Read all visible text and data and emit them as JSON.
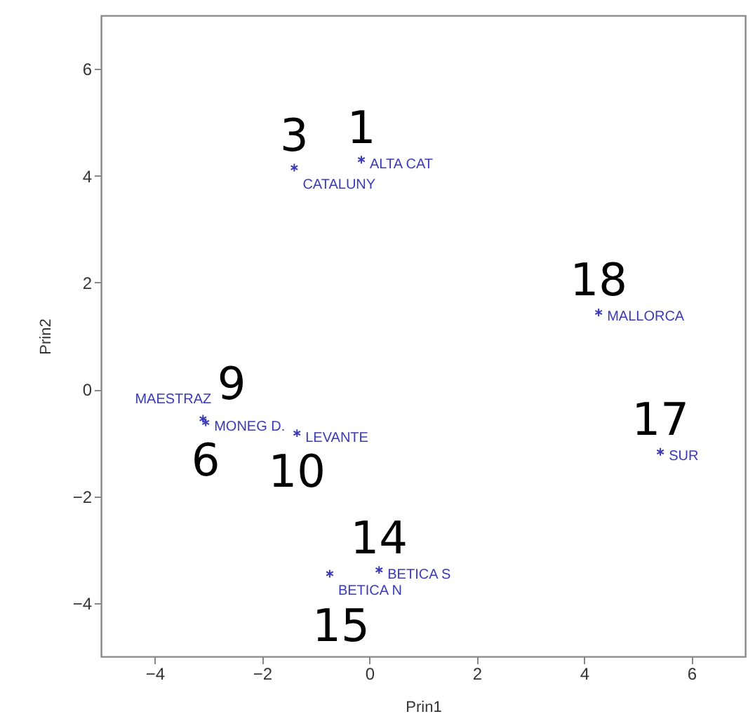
{
  "chart_data": {
    "type": "scatter",
    "xlabel": "Prin1",
    "ylabel": "Prin2",
    "xlim": [
      -5,
      7
    ],
    "xticks": [
      -4,
      -2,
      0,
      2,
      4,
      6
    ],
    "ylim": [
      -5,
      7
    ],
    "yticks": [
      -4,
      -2,
      0,
      2,
      4,
      6
    ],
    "grid": false,
    "marker": "cross",
    "series": [
      {
        "color": "#3a3ab8",
        "x": [
          -0.15,
          -1.4,
          4.27,
          -3.05,
          -3.1,
          -1.35,
          5.42,
          0.18,
          -0.74
        ],
        "values": [
          4.3,
          4.15,
          1.44,
          -0.62,
          -0.55,
          -0.82,
          -1.17,
          -3.38,
          -3.45
        ],
        "value_labels": [
          "ALTA CAT",
          "CATALUNY",
          "MALLORCA",
          "MONEG D.",
          "MAESTRAZ",
          "LEVANTE",
          "SUR",
          "BETICA S",
          "BETICA N"
        ]
      }
    ],
    "annotations": [
      "1",
      "3",
      "18",
      "6",
      "9",
      "10",
      "17",
      "14",
      "15"
    ]
  }
}
